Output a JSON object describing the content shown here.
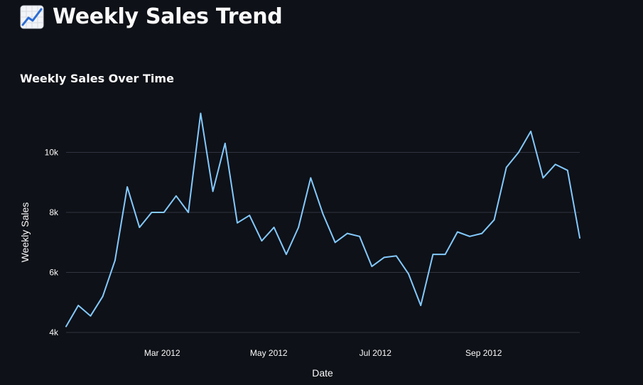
{
  "header": {
    "title": "Weekly Sales Trend",
    "icon": "chart-increasing-icon"
  },
  "colors": {
    "background": "#0e1117",
    "line": "#83c9ff",
    "grid": "#31333f",
    "text": "#fafafa"
  },
  "chart_data": {
    "type": "line",
    "title": "Weekly Sales Over Time",
    "xlabel": "Date",
    "ylabel": "Weekly Sales",
    "xlim": [
      "2012-01-06",
      "2012-10-26"
    ],
    "ylim": [
      4000,
      12000
    ],
    "y_ticks": [
      4000,
      6000,
      8000,
      10000
    ],
    "y_tick_labels": [
      "4k",
      "6k",
      "8k",
      "10k"
    ],
    "x_ticks": [
      "2012-03-01",
      "2012-05-01",
      "2012-07-01",
      "2012-09-01"
    ],
    "x_tick_labels": [
      "Mar 2012",
      "May 2012",
      "Jul 2012",
      "Sep 2012"
    ],
    "grid": "horizontal",
    "series": [
      {
        "x": [
          "2012-01-06",
          "2012-01-13",
          "2012-01-20",
          "2012-01-27",
          "2012-02-03",
          "2012-02-10",
          "2012-02-17",
          "2012-02-24",
          "2012-03-02",
          "2012-03-09",
          "2012-03-16",
          "2012-03-23",
          "2012-03-30",
          "2012-04-06",
          "2012-04-13",
          "2012-04-20",
          "2012-04-27",
          "2012-05-04",
          "2012-05-11",
          "2012-05-18",
          "2012-05-25",
          "2012-06-01",
          "2012-06-08",
          "2012-06-15",
          "2012-06-22",
          "2012-06-29",
          "2012-07-06",
          "2012-07-13",
          "2012-07-20",
          "2012-07-27",
          "2012-08-03",
          "2012-08-10",
          "2012-08-17",
          "2012-08-24",
          "2012-08-31",
          "2012-09-07",
          "2012-09-14",
          "2012-09-21",
          "2012-09-28",
          "2012-10-05",
          "2012-10-12",
          "2012-10-19",
          "2012-10-26"
        ],
        "values": [
          4200,
          4900,
          4550,
          5200,
          6400,
          8850,
          7500,
          8000,
          8000,
          8550,
          8000,
          11300,
          8700,
          10300,
          7650,
          7900,
          7050,
          7500,
          6600,
          7500,
          9150,
          7950,
          7000,
          7300,
          7200,
          6200,
          6500,
          6550,
          5950,
          4900,
          6600,
          6600,
          7350,
          7200,
          7300,
          7750,
          9500,
          10000,
          10700,
          9150,
          9600,
          9400,
          7150
        ]
      }
    ]
  }
}
